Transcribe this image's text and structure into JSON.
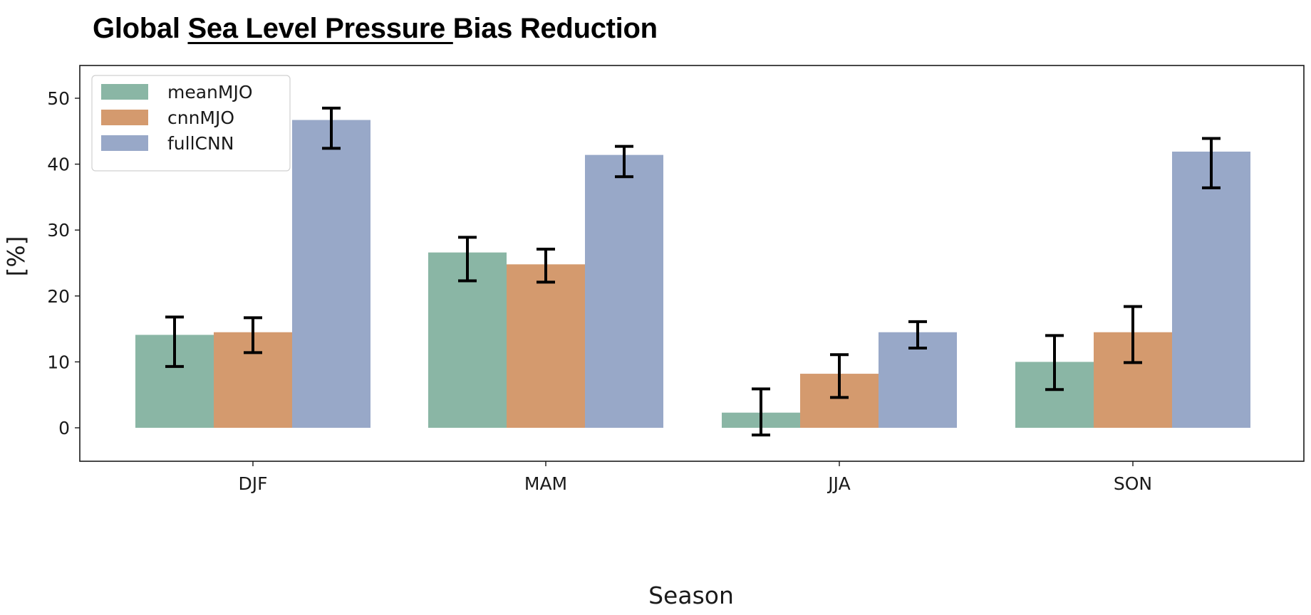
{
  "chart_data": {
    "type": "bar",
    "title": {
      "prefix": "Global ",
      "underlined": "Sea Level Pressure ",
      "suffix": "Bias Reduction"
    },
    "xlabel": "Season",
    "ylabel": "[%]",
    "categories": [
      "DJF",
      "MAM",
      "JJA",
      "SON"
    ],
    "ylim": [
      -5,
      55
    ],
    "yticks": [
      0,
      10,
      20,
      30,
      40,
      50
    ],
    "grid": false,
    "legend_position": "top-left",
    "series": [
      {
        "name": "meanMJO",
        "color": "#8ab6a5",
        "values": [
          14.1,
          26.6,
          2.3,
          10.0
        ],
        "error_low": [
          9.3,
          22.3,
          -1.1,
          5.8
        ],
        "error_high": [
          16.8,
          28.9,
          5.9,
          14.0
        ]
      },
      {
        "name": "cnnMJO",
        "color": "#d49a6e",
        "values": [
          14.5,
          24.8,
          8.2,
          14.5
        ],
        "error_low": [
          11.4,
          22.1,
          4.6,
          9.9
        ],
        "error_high": [
          16.7,
          27.1,
          11.1,
          18.4
        ]
      },
      {
        "name": "fullCNN",
        "color": "#98a8c8",
        "values": [
          46.7,
          41.4,
          14.5,
          41.9
        ],
        "error_low": [
          42.4,
          38.1,
          12.1,
          36.4
        ],
        "error_high": [
          48.5,
          42.7,
          16.1,
          43.9
        ]
      }
    ]
  }
}
